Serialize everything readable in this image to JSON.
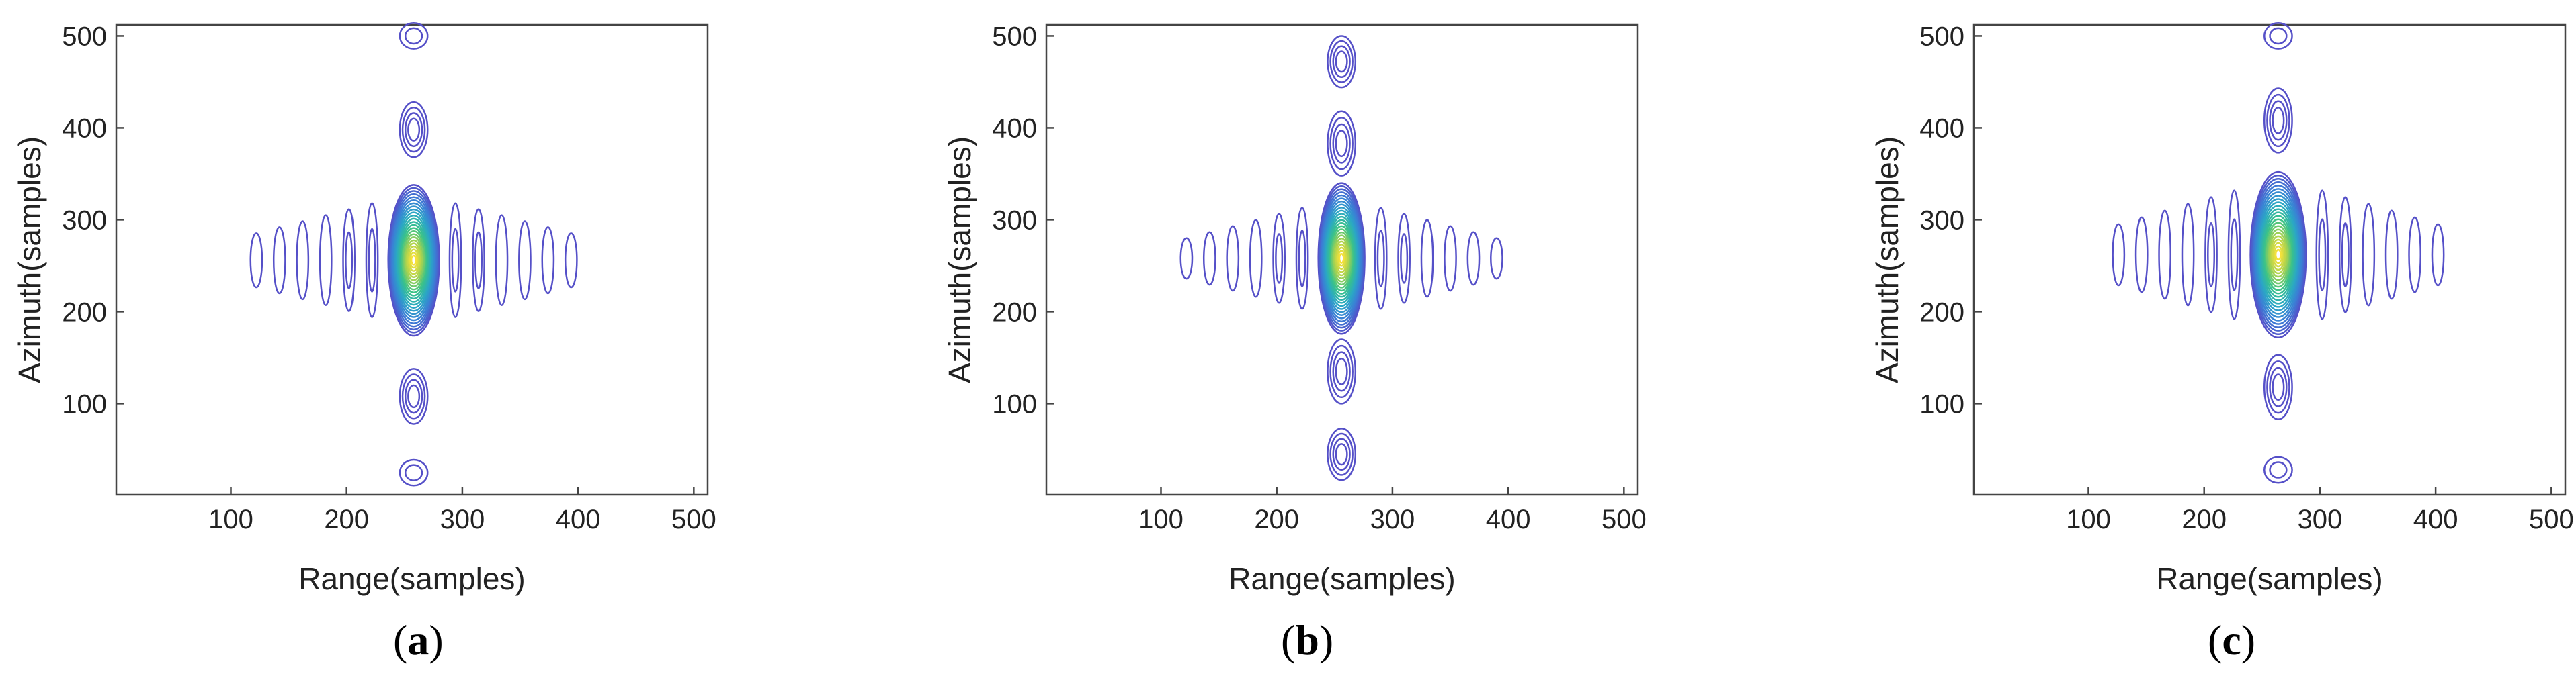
{
  "figure": {
    "background": "#ffffff",
    "axis_color": "#444444"
  },
  "chart_data": [
    {
      "type": "contour",
      "panel_label": "a",
      "xlabel": "Range(samples)",
      "ylabel": "Azimuth(samples)",
      "xlim": [
        1,
        512
      ],
      "ylim": [
        1,
        512
      ],
      "xticks": [
        100,
        200,
        300,
        400,
        500
      ],
      "yticks": [
        100,
        200,
        300,
        400,
        500
      ],
      "peak": {
        "x": 258,
        "y": 256
      },
      "main_lobe": {
        "half_width": 22,
        "half_height": 82
      },
      "range_sidelobes": {
        "spacing": 20,
        "count_each_side": 6,
        "base_height": 62,
        "height_decay": 0.07,
        "half_width": 5
      },
      "azimuth_sidelobes": {
        "centers": [
          108,
          398,
          25,
          500
        ],
        "half_height": [
          30,
          30,
          14,
          14
        ],
        "half_width": 12
      },
      "colormap": [
        "#5550c8",
        "#3a7fd6",
        "#2aa8c4",
        "#39c28a",
        "#a8d250",
        "#f5e13a"
      ]
    },
    {
      "type": "contour",
      "panel_label": "b",
      "xlabel": "Range(samples)",
      "ylabel": "Azimuth(samples)",
      "xlim": [
        1,
        512
      ],
      "ylim": [
        1,
        512
      ],
      "xticks": [
        100,
        200,
        300,
        400,
        500
      ],
      "yticks": [
        100,
        200,
        300,
        400,
        500
      ],
      "peak": {
        "x": 256,
        "y": 258
      },
      "main_lobe": {
        "half_width": 20,
        "half_height": 82
      },
      "range_sidelobes": {
        "spacing": 20,
        "count_each_side": 6,
        "base_height": 55,
        "height_decay": 0.08,
        "half_width": 5
      },
      "azimuth_sidelobes": {
        "centers": [
          135,
          383,
          45,
          472
        ],
        "half_height": [
          35,
          35,
          28,
          28
        ],
        "half_width": 12
      },
      "colormap": [
        "#5550c8",
        "#3a7fd6",
        "#2aa8c4",
        "#39c28a",
        "#a8d250",
        "#f5e13a"
      ]
    },
    {
      "type": "contour",
      "panel_label": "c",
      "xlabel": "Range(samples)",
      "ylabel": "Azimuth(samples)",
      "xlim": [
        1,
        512
      ],
      "ylim": [
        1,
        512
      ],
      "xticks": [
        100,
        200,
        300,
        400,
        500
      ],
      "yticks": [
        100,
        200,
        300,
        400,
        500
      ],
      "peak": {
        "x": 264,
        "y": 262
      },
      "main_lobe": {
        "half_width": 24,
        "half_height": 90
      },
      "range_sidelobes": {
        "spacing": 20,
        "count_each_side": 6,
        "base_height": 70,
        "height_decay": 0.07,
        "half_width": 5
      },
      "azimuth_sidelobes": {
        "centers": [
          118,
          408,
          28,
          500
        ],
        "half_height": [
          35,
          35,
          14,
          14
        ],
        "half_width": 12
      },
      "colormap": [
        "#5550c8",
        "#3a7fd6",
        "#2aa8c4",
        "#39c28a",
        "#a8d250",
        "#f5e13a"
      ]
    }
  ]
}
